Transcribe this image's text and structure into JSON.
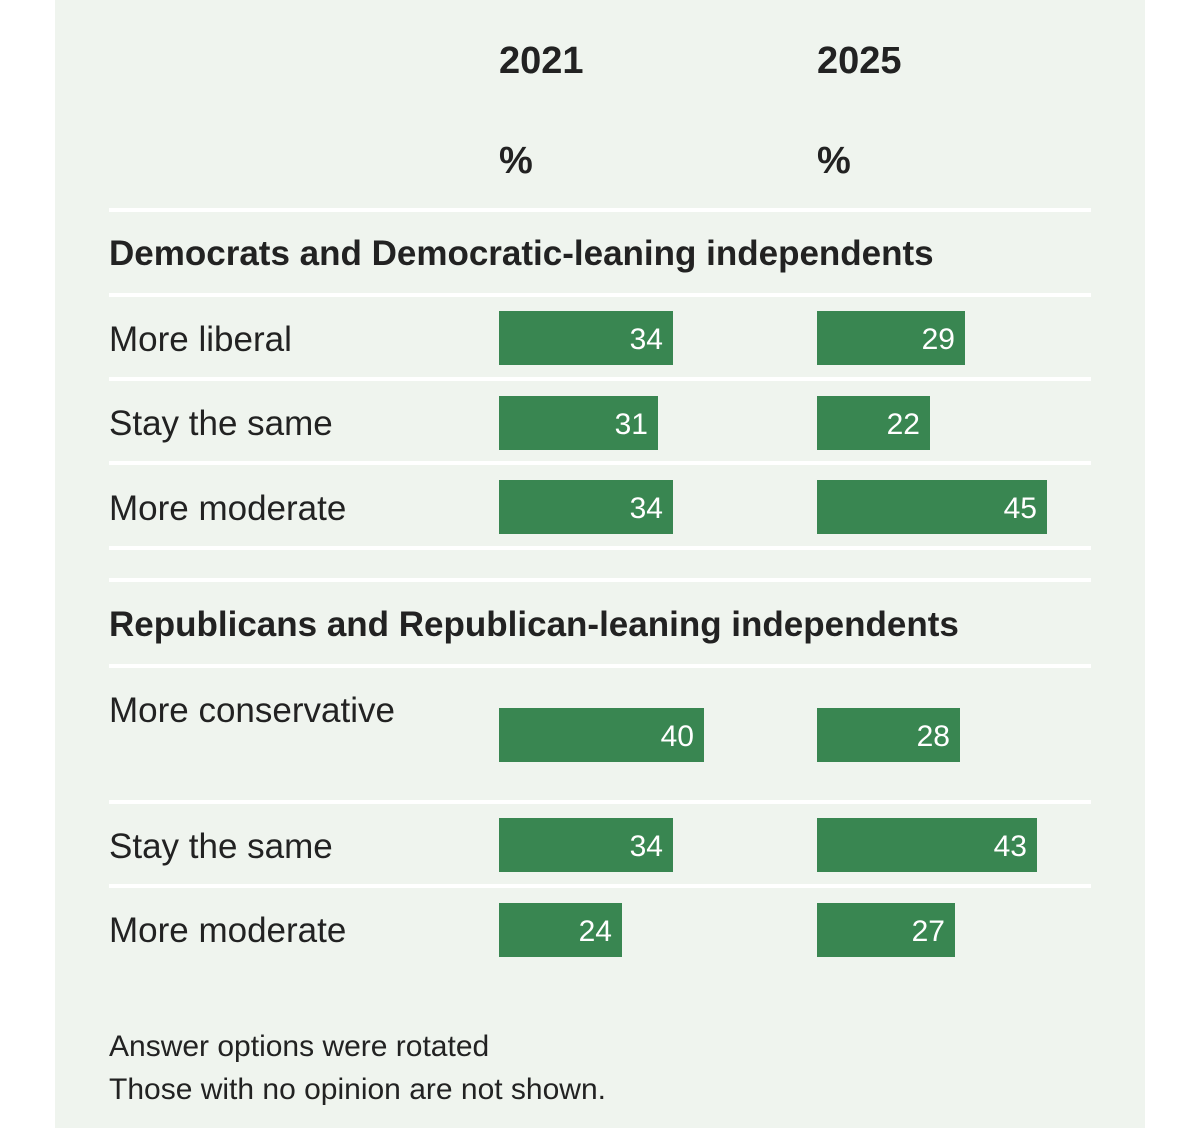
{
  "chart_data": {
    "type": "bar",
    "orientation": "horizontal",
    "columns": [
      "2021",
      "2025"
    ],
    "unit_label": "%",
    "xlim": [
      0,
      100
    ],
    "groups": [
      {
        "title": "Democrats and Democratic-leaning independents",
        "rows": [
          {
            "label": "More liberal",
            "values": [
              34,
              29
            ]
          },
          {
            "label": "Stay the same",
            "values": [
              31,
              22
            ]
          },
          {
            "label": "More moderate",
            "values": [
              34,
              45
            ]
          }
        ]
      },
      {
        "title": "Republicans and Republican-leaning independents",
        "rows": [
          {
            "label": "More conservative",
            "values": [
              40,
              28
            ]
          },
          {
            "label": "Stay the same",
            "values": [
              34,
              43
            ]
          },
          {
            "label": "More moderate",
            "values": [
              24,
              27
            ]
          }
        ]
      }
    ],
    "notes": [
      "Answer options were rotated",
      "Those with no opinion are not shown."
    ],
    "bar_color": "#398651",
    "background_color": "#eff4ee"
  }
}
